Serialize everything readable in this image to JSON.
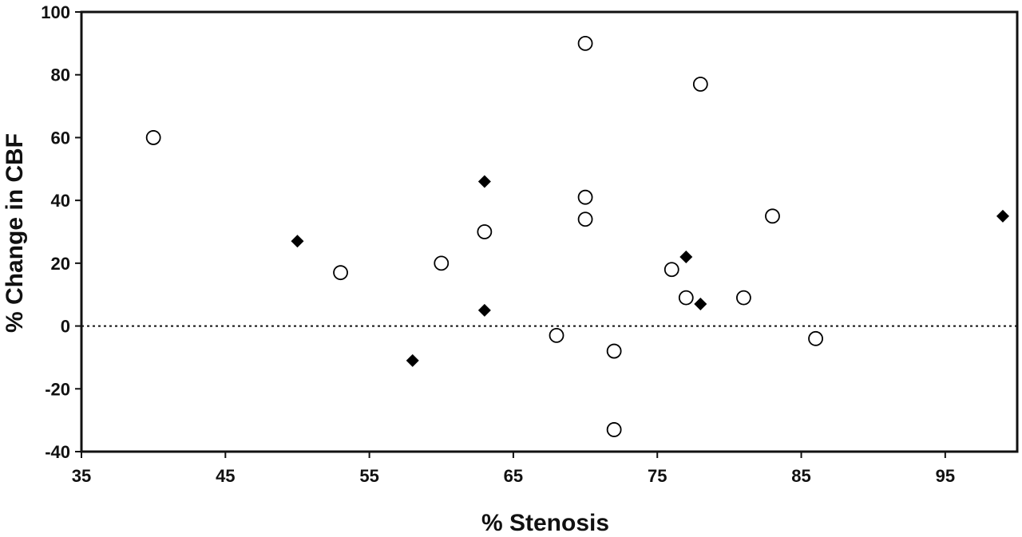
{
  "chart_data": {
    "type": "scatter",
    "title": "",
    "xlabel": "% Stenosis",
    "ylabel": "% Change in CBF",
    "xlim": [
      35,
      100
    ],
    "ylim": [
      -40,
      100
    ],
    "x_ticks": [
      "35",
      "45",
      "55",
      "65",
      "75",
      "85",
      "95"
    ],
    "y_ticks": [
      "100",
      "80",
      "60",
      "40",
      "20",
      "0",
      "-20",
      "-40"
    ],
    "grid": false,
    "legend": "none",
    "reference_line": {
      "y": 0,
      "style": "dotted"
    },
    "series": [
      {
        "marker": "open-circle",
        "color": "#000000",
        "points": [
          [
            40,
            60
          ],
          [
            53,
            17
          ],
          [
            60,
            20
          ],
          [
            63,
            30
          ],
          [
            68,
            -3
          ],
          [
            70,
            90
          ],
          [
            70,
            41
          ],
          [
            70,
            34
          ],
          [
            72,
            -8
          ],
          [
            72,
            -33
          ],
          [
            76,
            18
          ],
          [
            77,
            9
          ],
          [
            78,
            77
          ],
          [
            81,
            9
          ],
          [
            83,
            35
          ],
          [
            86,
            -4
          ]
        ]
      },
      {
        "marker": "filled-diamond",
        "color": "#000000",
        "points": [
          [
            50,
            27
          ],
          [
            58,
            -11
          ],
          [
            63,
            46
          ],
          [
            63,
            5
          ],
          [
            77,
            22
          ],
          [
            78,
            7
          ],
          [
            99,
            35
          ]
        ]
      }
    ]
  }
}
